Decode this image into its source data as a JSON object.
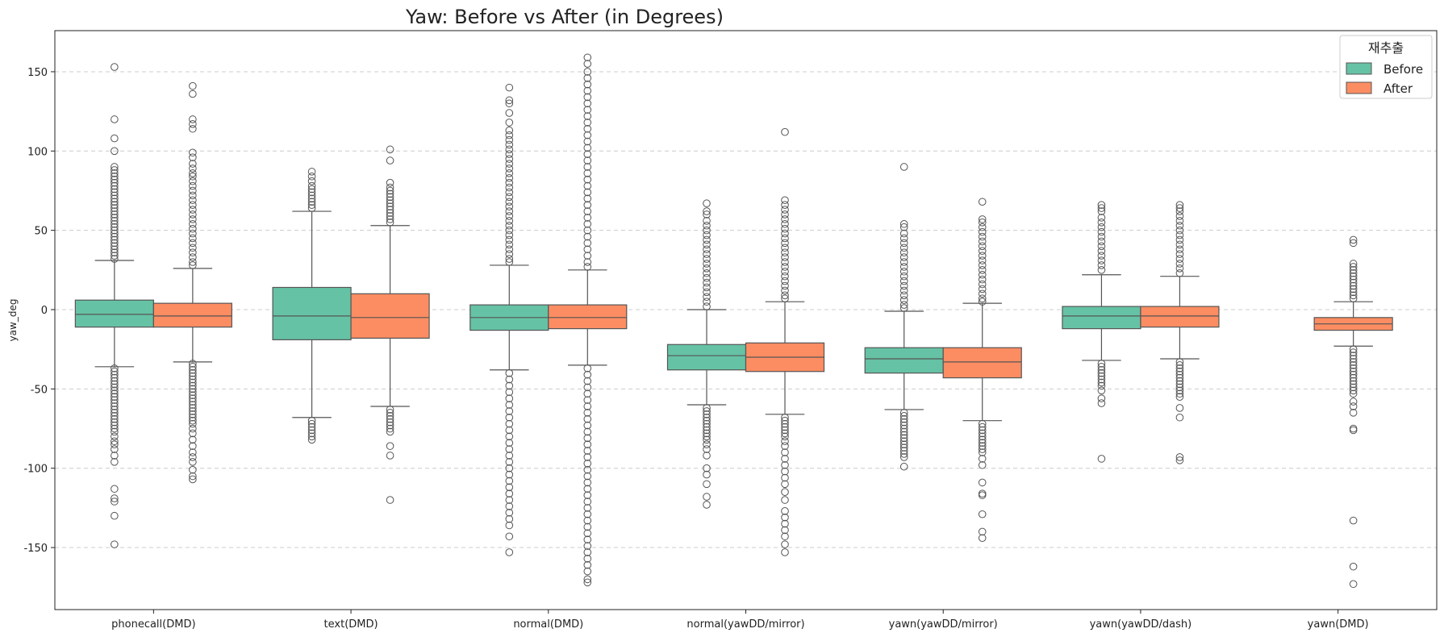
{
  "chart_data": {
    "type": "box",
    "title": "Yaw: Before vs After (in Degrees)",
    "xlabel": "",
    "ylabel": "yaw_deg",
    "ylim": [
      -190,
      175
    ],
    "yticks": [
      150,
      100,
      50,
      0,
      -50,
      -100,
      -150
    ],
    "grid": "horizontal-dashed",
    "legend": {
      "title": "재추출",
      "placement": "top-right"
    },
    "categories": [
      "phonecall(DMD)",
      "text(DMD)",
      "normal(DMD)",
      "normal(yawDD/mirror)",
      "yawn(yawDD/mirror)",
      "yawn(yawDD/dash)",
      "yawn(DMD)"
    ],
    "colors": {
      "Before": "#66c2a5",
      "After": "#fc8d62",
      "edge": "#555555",
      "grid": "#cccccc"
    },
    "series": [
      {
        "name": "Before",
        "boxes": [
          {
            "whisker_low": -36,
            "q1": -11,
            "median": -3,
            "q3": 6,
            "whisker_high": 31,
            "outliers_high": [
              153,
              120,
              108,
              100,
              90,
              88,
              86,
              84,
              82,
              80,
              78,
              76,
              74,
              72,
              70,
              68,
              66,
              64,
              62,
              60,
              58,
              56,
              54,
              52,
              50,
              48,
              46,
              44,
              42,
              40,
              38,
              36,
              34,
              32
            ],
            "outliers_low": [
              -37,
              -39,
              -41,
              -43,
              -45,
              -47,
              -49,
              -51,
              -53,
              -55,
              -57,
              -59,
              -61,
              -63,
              -65,
              -67,
              -69,
              -71,
              -73,
              -75,
              -77,
              -80,
              -83,
              -85,
              -88,
              -92,
              -96,
              -113,
              -119,
              -121,
              -130,
              -148
            ]
          },
          {
            "whisker_low": -68,
            "q1": -19,
            "median": -4,
            "q3": 14,
            "whisker_high": 62,
            "outliers_high": [
              87,
              84,
              81,
              78,
              76,
              74,
              72,
              70,
              68,
              66,
              64
            ],
            "outliers_low": [
              -70,
              -72,
              -74,
              -76,
              -78,
              -80,
              -82
            ]
          },
          {
            "whisker_low": -38,
            "q1": -13,
            "median": -5,
            "q3": 3,
            "whisker_high": 28,
            "outliers_high": [
              140,
              132,
              130,
              124,
              118,
              113,
              110,
              107,
              104,
              101,
              98,
              95,
              92,
              89,
              86,
              83,
              80,
              77,
              74,
              71,
              68,
              65,
              62,
              59,
              56,
              53,
              50,
              47,
              44,
              41,
              38,
              35,
              32,
              30
            ],
            "outliers_low": [
              -40,
              -44,
              -48,
              -52,
              -56,
              -60,
              -64,
              -68,
              -72,
              -76,
              -80,
              -84,
              -88,
              -92,
              -96,
              -100,
              -104,
              -108,
              -112,
              -116,
              -120,
              -124,
              -128,
              -132,
              -136,
              -143,
              -153
            ]
          },
          {
            "whisker_low": -60,
            "q1": -38,
            "median": -29,
            "q3": -22,
            "whisker_high": 0,
            "outliers_high": [
              67,
              62,
              60,
              56,
              53,
              50,
              47,
              44,
              41,
              38,
              35,
              32,
              29,
              26,
              23,
              20,
              17,
              14,
              11,
              8,
              5,
              2
            ],
            "outliers_low": [
              -62,
              -64,
              -66,
              -68,
              -70,
              -72,
              -74,
              -76,
              -78,
              -80,
              -82,
              -85,
              -88,
              -92,
              -100,
              -104,
              -110,
              -118,
              -123
            ]
          },
          {
            "whisker_low": -63,
            "q1": -40,
            "median": -31,
            "q3": -24,
            "whisker_high": -1,
            "outliers_high": [
              90,
              54,
              52,
              48,
              45,
              42,
              39,
              36,
              33,
              30,
              27,
              24,
              21,
              18,
              15,
              12,
              9,
              6,
              3,
              1
            ],
            "outliers_low": [
              -65,
              -67,
              -69,
              -71,
              -73,
              -75,
              -77,
              -79,
              -81,
              -83,
              -85,
              -87,
              -89,
              -91,
              -93,
              -99
            ]
          },
          {
            "whisker_low": -32,
            "q1": -12,
            "median": -4,
            "q3": 2,
            "whisker_high": 22,
            "outliers_high": [
              66,
              64,
              62,
              58,
              55,
              52,
              49,
              46,
              43,
              40,
              37,
              34,
              31,
              28,
              25
            ],
            "outliers_low": [
              -34,
              -36,
              -38,
              -40,
              -42,
              -44,
              -46,
              -48,
              -51,
              -56,
              -59,
              -94
            ]
          }
        ]
      },
      {
        "name": "After",
        "boxes": [
          {
            "whisker_low": -33,
            "q1": -11,
            "median": -4,
            "q3": 4,
            "whisker_high": 26,
            "outliers_high": [
              141,
              136,
              120,
              117,
              114,
              99,
              96,
              92,
              89,
              86,
              84,
              81,
              78,
              75,
              72,
              69,
              66,
              63,
              60,
              57,
              54,
              51,
              48,
              45,
              42,
              39,
              36,
              33,
              30,
              28
            ],
            "outliers_low": [
              -34,
              -36,
              -38,
              -40,
              -42,
              -44,
              -46,
              -48,
              -50,
              -52,
              -54,
              -56,
              -58,
              -60,
              -62,
              -64,
              -66,
              -68,
              -70,
              -72,
              -75,
              -78,
              -82,
              -86,
              -90,
              -93,
              -96,
              -101,
              -105,
              -107
            ]
          },
          {
            "whisker_low": -61,
            "q1": -18,
            "median": -5,
            "q3": 10,
            "whisker_high": 53,
            "outliers_high": [
              101,
              94,
              80,
              77,
              75,
              73,
              71,
              69,
              67,
              65,
              63,
              61,
              59,
              57,
              55
            ],
            "outliers_low": [
              -63,
              -65,
              -67,
              -69,
              -71,
              -73,
              -75,
              -77,
              -86,
              -92,
              -120
            ]
          },
          {
            "whisker_low": -35,
            "q1": -12,
            "median": -5,
            "q3": 3,
            "whisker_high": 25,
            "outliers_high": [
              159,
              155,
              150,
              146,
              142,
              138,
              134,
              130,
              126,
              122,
              118,
              114,
              110,
              106,
              102,
              98,
              94,
              90,
              86,
              82,
              78,
              74,
              70,
              66,
              62,
              58,
              54,
              50,
              46,
              42,
              38,
              34,
              30,
              27
            ],
            "outliers_low": [
              -37,
              -41,
              -45,
              -49,
              -53,
              -57,
              -61,
              -65,
              -69,
              -73,
              -77,
              -81,
              -85,
              -89,
              -93,
              -97,
              -101,
              -105,
              -109,
              -113,
              -117,
              -121,
              -125,
              -129,
              -133,
              -137,
              -141,
              -145,
              -149,
              -153,
              -157,
              -161,
              -165,
              -170,
              -172
            ]
          },
          {
            "whisker_low": -66,
            "q1": -39,
            "median": -30,
            "q3": -21,
            "whisker_high": 5,
            "outliers_high": [
              112,
              69,
              66,
              63,
              60,
              57,
              54,
              51,
              48,
              45,
              42,
              39,
              36,
              33,
              30,
              27,
              24,
              21,
              18,
              15,
              12,
              9,
              7
            ],
            "outliers_low": [
              -68,
              -70,
              -72,
              -74,
              -76,
              -78,
              -80,
              -83,
              -86,
              -90,
              -94,
              -98,
              -102,
              -106,
              -110,
              -115,
              -120,
              -127,
              -131,
              -135,
              -139,
              -143,
              -148,
              -153
            ]
          },
          {
            "whisker_low": -70,
            "q1": -43,
            "median": -33,
            "q3": -24,
            "whisker_high": 4,
            "outliers_high": [
              68,
              57,
              55,
              52,
              49,
              46,
              43,
              40,
              37,
              34,
              31,
              28,
              25,
              22,
              19,
              16,
              13,
              10,
              7,
              5
            ],
            "outliers_low": [
              -72,
              -74,
              -76,
              -78,
              -80,
              -82,
              -84,
              -86,
              -88,
              -90,
              -94,
              -98,
              -109,
              -116,
              -117,
              -129,
              -140,
              -144
            ]
          },
          {
            "whisker_low": -31,
            "q1": -11,
            "median": -4,
            "q3": 2,
            "whisker_high": 21,
            "outliers_high": [
              66,
              64,
              62,
              59,
              56,
              53,
              50,
              47,
              44,
              41,
              38,
              35,
              32,
              29,
              26,
              23
            ],
            "outliers_low": [
              -33,
              -35,
              -37,
              -39,
              -41,
              -43,
              -45,
              -47,
              -49,
              -51,
              -53,
              -55,
              -62,
              -68,
              -93,
              -95
            ]
          },
          {
            "whisker_low": -23,
            "q1": -13,
            "median": -9,
            "q3": -5,
            "whisker_high": 5,
            "outliers_high": [
              44,
              42,
              29,
              27,
              25,
              23,
              21,
              19,
              17,
              15,
              13,
              11,
              9,
              7
            ],
            "outliers_low": [
              -25,
              -27,
              -29,
              -31,
              -33,
              -35,
              -37,
              -39,
              -41,
              -43,
              -45,
              -47,
              -49,
              -51,
              -53,
              -58,
              -61,
              -65,
              -75,
              -76,
              -133,
              -162,
              -173
            ]
          }
        ]
      }
    ]
  }
}
